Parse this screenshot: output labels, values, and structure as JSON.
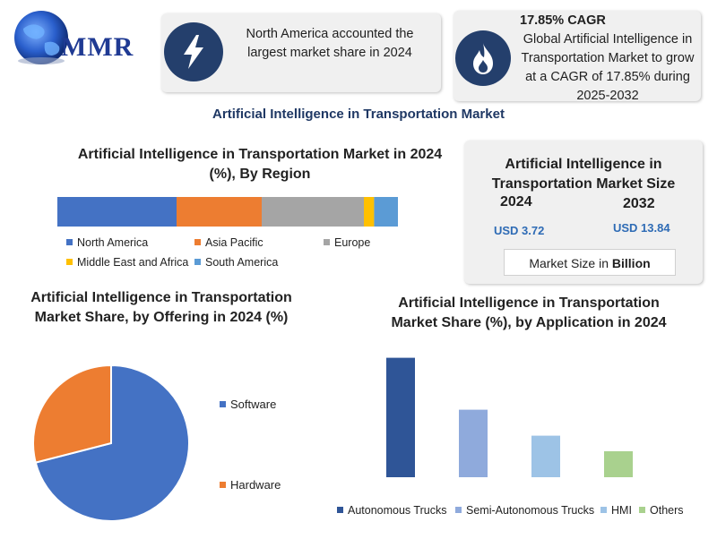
{
  "logo": {
    "text": "MMR"
  },
  "card1": {
    "icon": "lightning-bolt-icon",
    "text": "North America accounted the largest market share in 2024"
  },
  "card2": {
    "icon": "flame-icon",
    "cagr": "17.85% CAGR",
    "text": "Global Artificial Intelligence in Transportation Market to grow at a CAGR of 17.85% during 2025-2032"
  },
  "main_title": "Artificial Intelligence in Transportation Market",
  "market_size": {
    "title": "Artificial Intelligence in Transportation Market Size",
    "year1": "2024",
    "value1": "USD 3.72",
    "year2": "2032",
    "value2": "USD 13.84",
    "unit_prefix": "Market Size in ",
    "unit_bold": "Billion"
  },
  "colors": {
    "blue_dark": "#4472c4",
    "orange": "#ed7d31",
    "gray": "#a5a5a5",
    "yellow": "#ffc000",
    "light_blue": "#5b9bd5",
    "navy": "#2f5597",
    "periwinkle": "#8faadc",
    "pale_blue": "#9dc3e6",
    "green": "#a9d18e",
    "icon_bg": "#243f6c"
  },
  "chart_data": [
    {
      "type": "bar",
      "stacked": true,
      "orientation": "horizontal",
      "title": "Artificial Intelligence in Transportation Market in 2024 (%), By Region",
      "series": [
        {
          "name": "North America",
          "value": 35,
          "color": "#4472c4"
        },
        {
          "name": "Asia Pacific",
          "value": 25,
          "color": "#ed7d31"
        },
        {
          "name": "Europe",
          "value": 30,
          "color": "#a5a5a5"
        },
        {
          "name": "Middle East and Africa",
          "value": 3,
          "color": "#ffc000"
        },
        {
          "name": "South America",
          "value": 7,
          "color": "#5b9bd5"
        }
      ],
      "legend": "bottom"
    },
    {
      "type": "pie",
      "title": "Artificial Intelligence in Transportation Market Share, by Offering in 2024 (%)",
      "slices": [
        {
          "name": "Software",
          "value": 71,
          "color": "#4472c4"
        },
        {
          "name": "Hardware",
          "value": 29,
          "color": "#ed7d31"
        }
      ],
      "legend": "right"
    },
    {
      "type": "bar",
      "title": "Artificial Intelligence in Transportation Market Share (%), by Application in 2024",
      "categories": [
        "Autonomous Trucks",
        "Semi-Autonomous Trucks",
        "HMI",
        "Others"
      ],
      "values": [
        46,
        26,
        16,
        10
      ],
      "colors": [
        "#2f5597",
        "#8faadc",
        "#9dc3e6",
        "#a9d18e"
      ],
      "ylim": [
        0,
        50
      ],
      "legend": "bottom"
    }
  ]
}
